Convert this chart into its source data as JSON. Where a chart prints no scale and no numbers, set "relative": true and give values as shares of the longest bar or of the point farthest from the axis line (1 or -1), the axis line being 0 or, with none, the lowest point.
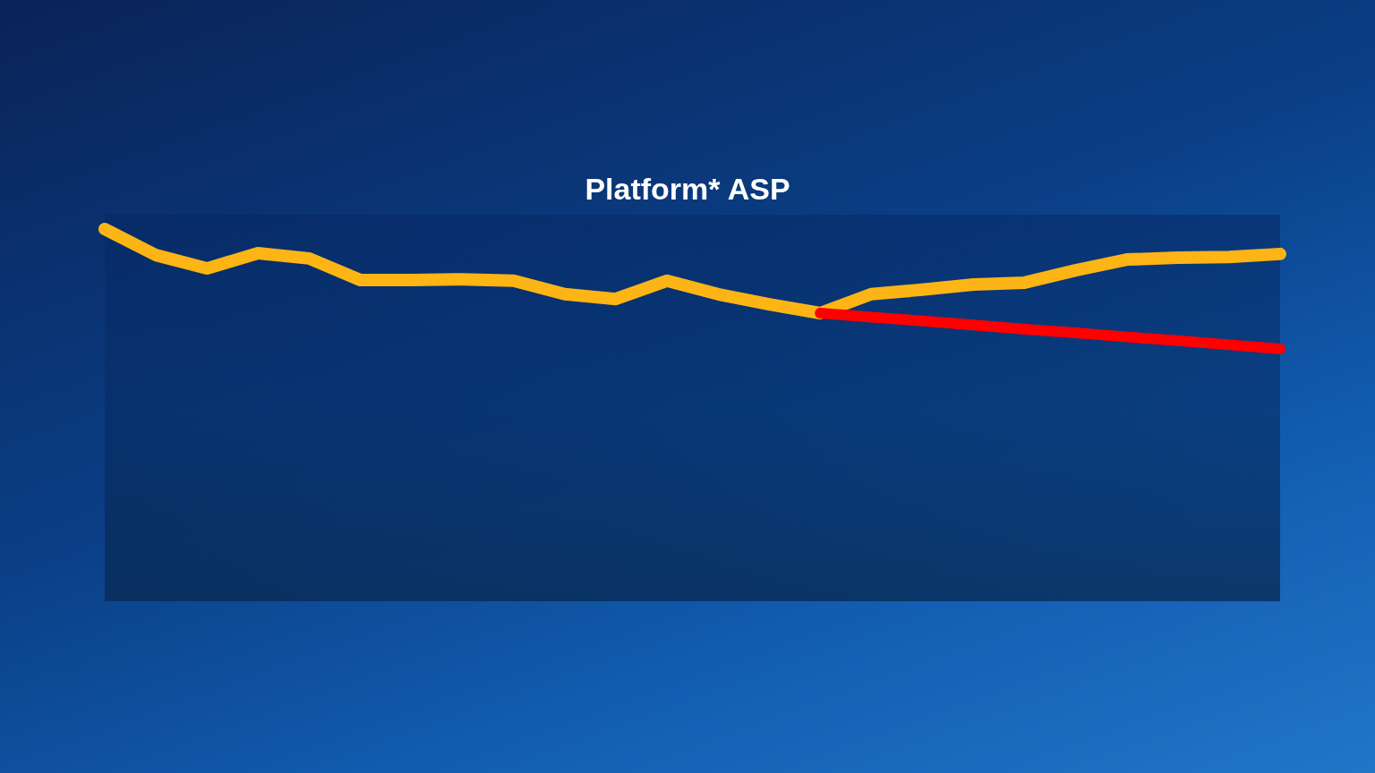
{
  "chart_data": {
    "type": "line",
    "title": "Platform* ASP",
    "categories": [
      null,
      null,
      null,
      null,
      null,
      null,
      null,
      null,
      null,
      null,
      null,
      null,
      null,
      null,
      null,
      null,
      null,
      null,
      null,
      null,
      null,
      null,
      null,
      null
    ],
    "relative": true,
    "tick_labels": false,
    "marker": "none",
    "line_style": "solid",
    "series": [
      {
        "color": "#fdb515",
        "values": [
          1.0,
          0.93,
          0.894,
          0.935,
          0.921,
          0.863,
          0.863,
          0.865,
          0.861,
          0.825,
          0.812,
          0.861,
          0.825,
          0.798,
          0.774,
          0.825,
          0.837,
          0.851,
          0.856,
          0.889,
          0.918,
          0.923,
          0.925,
          0.933
        ]
      },
      {
        "color": "#ff0000",
        "values": [
          null,
          null,
          null,
          null,
          null,
          null,
          null,
          null,
          null,
          null,
          null,
          null,
          null,
          null,
          0.774,
          0.763,
          0.753,
          0.742,
          0.731,
          0.721,
          0.71,
          0.7,
          0.689,
          0.678
        ]
      }
    ]
  }
}
